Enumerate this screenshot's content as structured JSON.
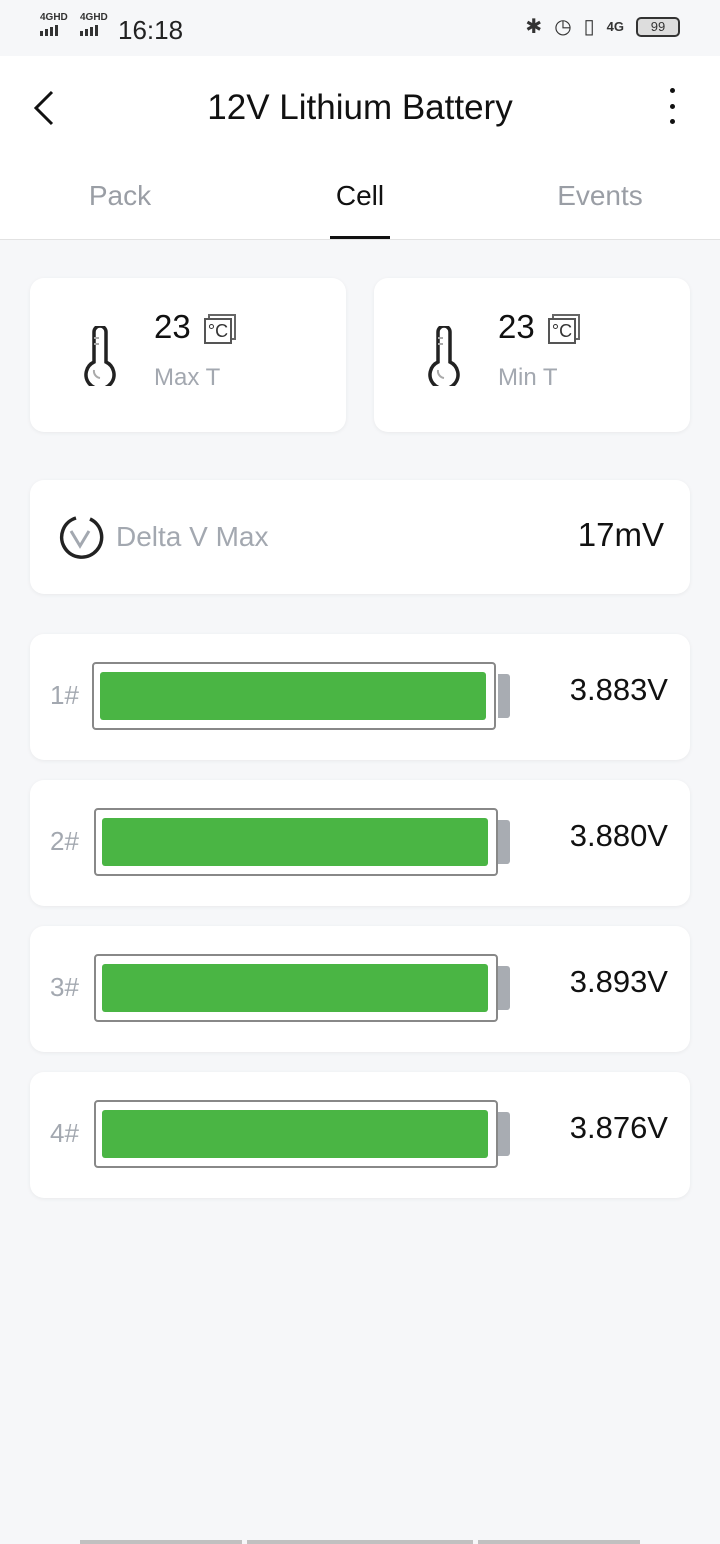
{
  "status_bar": {
    "time": "16:18",
    "sim1": "4GHD",
    "sim2": "4GHD",
    "net": "4G",
    "battery": "99"
  },
  "header": {
    "title": "12V Lithium Battery"
  },
  "tabs": [
    {
      "label": "Pack"
    },
    {
      "label": "Cell",
      "active": true
    },
    {
      "label": "Events"
    }
  ],
  "temps": [
    {
      "value": "23",
      "unit": "°C",
      "label": "Max T"
    },
    {
      "value": "23",
      "unit": "°C",
      "label": "Min T"
    }
  ],
  "delta": {
    "label": "Delta V Max",
    "value": "17mV"
  },
  "cells": [
    {
      "label": "1#",
      "voltage": "3.883V",
      "fill_percent": 100
    },
    {
      "label": "2#",
      "voltage": "3.880V",
      "fill_percent": 100
    },
    {
      "label": "3#",
      "voltage": "3.893V",
      "fill_percent": 100
    },
    {
      "label": "4#",
      "voltage": "3.876V",
      "fill_percent": 100
    }
  ],
  "colors": {
    "cell_fill": "#4ab544",
    "background": "#f6f7f9"
  }
}
